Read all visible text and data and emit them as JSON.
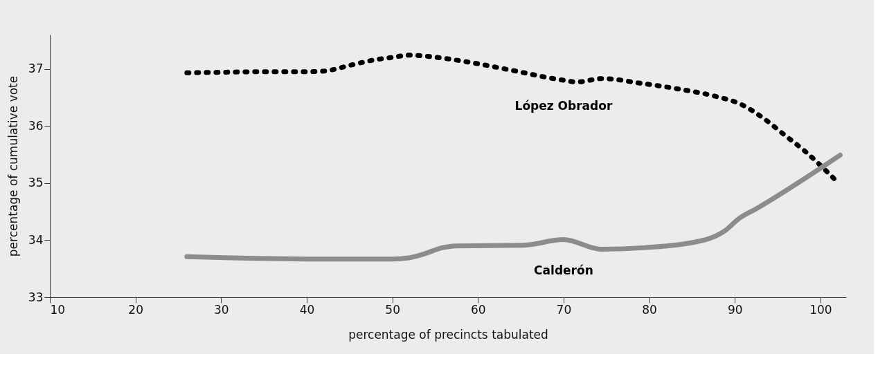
{
  "chart_data": {
    "type": "line",
    "xlabel": "percentage of precincts tabulated",
    "ylabel": "percentage of cumulative vote",
    "xlim": [
      10,
      103
    ],
    "xticks": [
      10,
      20,
      30,
      40,
      50,
      60,
      70,
      80,
      90,
      100
    ],
    "ylim": [
      33,
      37.6
    ],
    "yticks": [
      33,
      34,
      35,
      36,
      37
    ],
    "grid": false,
    "legend": false,
    "series": [
      {
        "name": "López Obrador",
        "color": "#000000",
        "line_style": "dotted",
        "x": [
          26,
          30,
          35,
          40,
          42,
          45,
          48,
          50,
          52,
          55.2,
          59.6,
          64.1,
          70,
          71.5,
          74.6,
          78.9,
          83.3,
          87.7,
          90.7,
          93.3,
          95.9,
          98.1,
          100,
          102.1
        ],
        "values": [
          36.93,
          36.94,
          36.95,
          36.95,
          36.96,
          37.06,
          37.16,
          37.2,
          37.24,
          37.2,
          37.1,
          36.97,
          36.8,
          36.77,
          36.83,
          36.75,
          36.65,
          36.52,
          36.38,
          36.14,
          35.83,
          35.57,
          35.31,
          35.0
        ]
      },
      {
        "name": "Calderón",
        "color": "#8c8c8e",
        "line_style": "solid",
        "x": [
          26,
          40,
          50,
          51.9,
          53.5,
          55.9,
          57.4,
          65.2,
          70,
          74.4,
          79.6,
          86.6,
          88.8,
          90.5,
          92.5,
          102.3
        ],
        "values": [
          33.71,
          33.67,
          33.67,
          33.69,
          33.75,
          33.87,
          33.9,
          33.91,
          34.01,
          33.84,
          33.87,
          34.01,
          34.16,
          34.38,
          34.55,
          35.49
        ]
      }
    ]
  }
}
